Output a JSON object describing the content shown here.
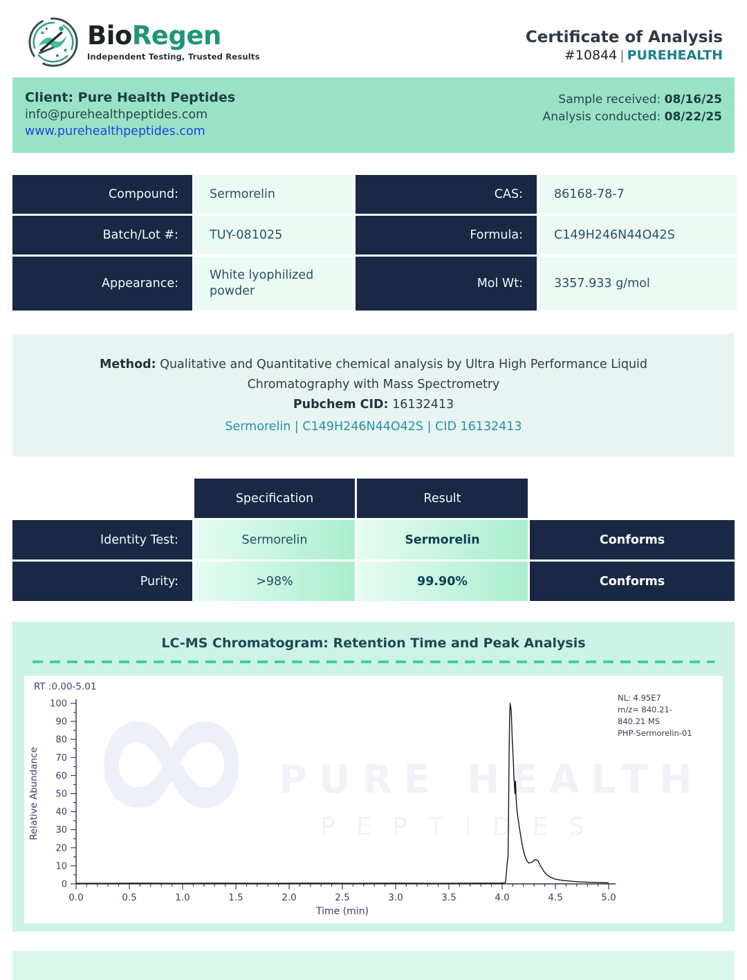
{
  "header": {
    "brand_bio": "Bio",
    "brand_regen": "Regen",
    "tagline": "Independent Testing, Trusted Results",
    "title": "Certificate of Analysis",
    "cert_number": "#10844",
    "divider": "|",
    "client_tag": "PUREHEALTH"
  },
  "client_bar": {
    "client_label": "Client: Pure Health Peptides",
    "email": "info@purehealthpeptides.com",
    "website": "www.purehealthpeptides.com",
    "sample_received_label": "Sample received: ",
    "sample_received_date": "08/16/25",
    "analysis_conducted_label": "Analysis conducted: ",
    "analysis_conducted_date": "08/22/25"
  },
  "compound_table": {
    "rows": [
      {
        "label": "Compound:",
        "value": "Sermorelin",
        "label2": "CAS:",
        "value2": "86168-78-7"
      },
      {
        "label": "Batch/Lot #:",
        "value": "TUY-081025",
        "label2": "Formula:",
        "value2": "C149H246N44O42S"
      },
      {
        "label": "Appearance:",
        "value": "White lyophilized powder",
        "label2": "Mol Wt:",
        "value2": "3357.933 g/mol"
      }
    ]
  },
  "method": {
    "label": "Method:",
    "text": " Qualitative and Quantitative chemical analysis by Ultra High Performance Liquid Chromatography with Mass Spectrometry",
    "pubchem_label": "Pubchem CID:",
    "pubchem_value": " 16132413",
    "link": "Sermorelin | C149H246N44O42S | CID 16132413"
  },
  "results_table": {
    "col_specification": "Specification",
    "col_result": "Result",
    "rows": [
      {
        "label": "Identity Test:",
        "specification": "Sermorelin",
        "result": "Sermorelin",
        "status": "Conforms"
      },
      {
        "label": "Purity:",
        "specification": ">98%",
        "result": "99.90%",
        "status": "Conforms"
      }
    ]
  },
  "chromatogram_section": {
    "title": "LC-MS Chromatogram: Retention Time and Peak Analysis"
  },
  "watermark": {
    "symbol": "∞",
    "line1": "PURE HEALTH",
    "line2": "PEPTIDES"
  },
  "chart_data": {
    "type": "line",
    "title": "LC-MS Chromatogram: Retention Time and Peak Analysis",
    "rt_label": "RT :0.00-5.01",
    "xlabel": "Time (min)",
    "ylabel": "Relative Abundance",
    "xlim": [
      0,
      5.0
    ],
    "ylim": [
      0,
      100
    ],
    "x_major_tick_step": 0.5,
    "x_minor_tick_step": 0.1,
    "y_major_tick_step": 10,
    "y_minor_tick_step": 5,
    "grid": false,
    "legend_position": "none",
    "annotation_lines": [
      "NL: 4.95E7",
      "m/z= 840.21-",
      "840.21 MS",
      "PHP-Sermorelin-01"
    ],
    "peak_retention_time": 4.08,
    "peak_relative_abundance": 100,
    "line_color": "#161616",
    "axis_color": "#2b2f52",
    "tick_label_color": "#3a3f63",
    "series": [
      {
        "name": "PHP-Sermorelin-01",
        "points": [
          [
            0.0,
            0.3
          ],
          [
            0.3,
            0.3
          ],
          [
            0.6,
            0.4
          ],
          [
            1.0,
            0.3
          ],
          [
            1.4,
            0.4
          ],
          [
            1.8,
            0.3
          ],
          [
            2.2,
            0.4
          ],
          [
            2.6,
            0.3
          ],
          [
            3.0,
            0.4
          ],
          [
            3.4,
            0.3
          ],
          [
            3.8,
            0.4
          ],
          [
            3.98,
            0.4
          ],
          [
            4.03,
            0.6
          ],
          [
            4.04,
            6
          ],
          [
            4.045,
            10
          ],
          [
            4.05,
            13
          ],
          [
            4.055,
            15
          ],
          [
            4.06,
            35
          ],
          [
            4.065,
            70
          ],
          [
            4.07,
            92
          ],
          [
            4.075,
            100
          ],
          [
            4.085,
            96
          ],
          [
            4.09,
            88
          ],
          [
            4.095,
            80
          ],
          [
            4.1,
            74
          ],
          [
            4.105,
            68
          ],
          [
            4.11,
            60
          ],
          [
            4.115,
            55
          ],
          [
            4.12,
            50
          ],
          [
            4.125,
            57
          ],
          [
            4.13,
            49
          ],
          [
            4.135,
            44
          ],
          [
            4.14,
            40
          ],
          [
            4.155,
            34
          ],
          [
            4.17,
            28
          ],
          [
            4.19,
            21
          ],
          [
            4.21,
            16
          ],
          [
            4.23,
            13
          ],
          [
            4.25,
            11.5
          ],
          [
            4.28,
            12
          ],
          [
            4.31,
            13.5
          ],
          [
            4.335,
            13
          ],
          [
            4.36,
            10
          ],
          [
            4.39,
            7
          ],
          [
            4.42,
            5
          ],
          [
            4.46,
            3.5
          ],
          [
            4.5,
            2.6
          ],
          [
            4.56,
            2.0
          ],
          [
            4.64,
            1.5
          ],
          [
            4.72,
            1.1
          ],
          [
            4.82,
            0.9
          ],
          [
            4.92,
            0.7
          ],
          [
            5.0,
            0.6
          ]
        ]
      }
    ]
  },
  "colors": {
    "navy": "#192844",
    "client_bar_mint": "#9ae2c5",
    "value_cell_mint": "#ecfaf4",
    "method_bg": "#e8f4f1",
    "result_gradient_start": "#e6fcf2",
    "result_gradient_end": "#a9eecf",
    "chromo_bg": "#ccf3e5",
    "dash_teal": "#3ed0a2",
    "footer_bg": "#daf7ec",
    "brand_green": "#20947a",
    "purehealth_teal": "#1d7f8d",
    "link_blue": "#1a46e0",
    "method_link_teal": "#2592a4"
  }
}
